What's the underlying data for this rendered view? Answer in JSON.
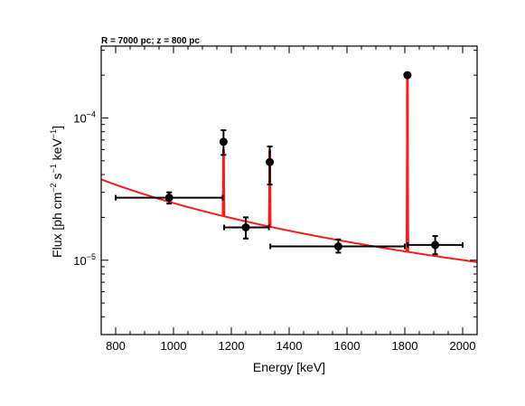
{
  "chart_data": {
    "type": "scatter",
    "title": "R = 7000 pc; z = 800 pc",
    "xlabel": "Energy [keV]",
    "ylabel_parts": {
      "a": "Flux [ph cm",
      "b": "−2",
      "c": " s",
      "d": "−1",
      "e": " keV",
      "f": "−1",
      "g": "]"
    },
    "xlim": [
      750,
      2050
    ],
    "ylim": [
      3e-06,
      0.00032
    ],
    "yscale": "log",
    "x_ticks": [
      {
        "value": 800,
        "label": "800"
      },
      {
        "value": 1000,
        "label": "1000"
      },
      {
        "value": 1200,
        "label": "1200"
      },
      {
        "value": 1400,
        "label": "1400"
      },
      {
        "value": 1600,
        "label": "1600"
      },
      {
        "value": 1800,
        "label": "1800"
      },
      {
        "value": 2000,
        "label": "2000"
      }
    ],
    "y_major_ticks": [
      {
        "value": 1e-05,
        "base": "10",
        "exp": "−5"
      },
      {
        "value": 0.0001,
        "base": "10",
        "exp": "−4"
      }
    ],
    "points": [
      {
        "x": 985,
        "xlo": 800,
        "xhi": 1170,
        "y": 2.75e-05,
        "ylo": 2.5e-05,
        "yhi": 3e-05
      },
      {
        "x": 1173,
        "xlo": 1173,
        "xhi": 1173,
        "y": 6.8e-05,
        "ylo": 5.5e-05,
        "yhi": 8.2e-05
      },
      {
        "x": 1250,
        "xlo": 1175,
        "xhi": 1330,
        "y": 1.7e-05,
        "ylo": 1.42e-05,
        "yhi": 2e-05
      },
      {
        "x": 1333,
        "xlo": 1333,
        "xhi": 1333,
        "y": 4.9e-05,
        "ylo": 3.4e-05,
        "yhi": 6.3e-05
      },
      {
        "x": 1570,
        "xlo": 1335,
        "xhi": 1800,
        "y": 1.25e-05,
        "ylo": 1.13e-05,
        "yhi": 1.4e-05
      },
      {
        "x": 1809,
        "xlo": 1809,
        "xhi": 1809,
        "y": 0.0002,
        "ylo": 0.000193,
        "yhi": 0.000207
      },
      {
        "x": 1905,
        "xlo": 1810,
        "xhi": 2000,
        "y": 1.28e-05,
        "ylo": 1.1e-05,
        "yhi": 1.48e-05
      }
    ],
    "model": {
      "continuum": {
        "type": "power-law",
        "x0": 750,
        "y0": 3.7e-05,
        "x1": 2050,
        "y1": 9.7e-06
      },
      "lines": [
        {
          "x": 1173,
          "peak": 6e-05
        },
        {
          "x": 1333,
          "peak": 6e-05
        },
        {
          "x": 1809,
          "peak": 0.0002
        }
      ],
      "color": "#ff1a1a"
    },
    "grid": false,
    "legend": "none",
    "colors": {
      "data": "#000000",
      "model": "#ff1a1a"
    }
  }
}
